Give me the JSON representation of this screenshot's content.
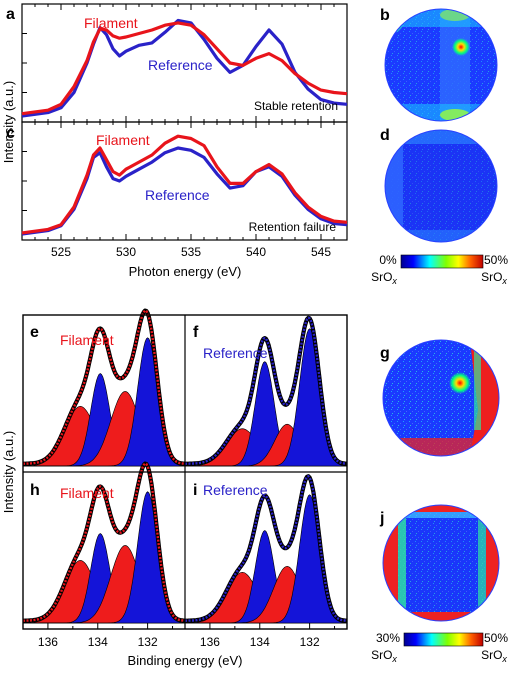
{
  "colors": {
    "filament": "#e8141b",
    "reference": "#2a22c8",
    "fill_red": "#ee1c1c",
    "fill_blue": "#1414d8",
    "map_bg": "#1c38ff"
  },
  "panel_labels": {
    "a": "a",
    "b": "b",
    "c": "c",
    "d": "d",
    "e": "e",
    "f": "f",
    "g": "g",
    "h": "h",
    "i": "i",
    "j": "j"
  },
  "top": {
    "ylabel": "Intensity (a.u.)",
    "xlabel": "Photon energy (eV)",
    "xticks": [
      "525",
      "530",
      "535",
      "540",
      "545"
    ],
    "panel_a": {
      "filament_label": "Filament",
      "reference_label": "Reference",
      "note": "Stable retention"
    },
    "panel_c": {
      "filament_label": "Filament",
      "reference_label": "Reference",
      "note": "Retention failure"
    }
  },
  "bottom": {
    "ylabel": "Intensity (a.u.)",
    "xlabel": "Binding energy (eV)",
    "xticks": [
      "136",
      "134",
      "132",
      "136",
      "134",
      "132"
    ],
    "panel_e": {
      "label": "Filament"
    },
    "panel_f": {
      "label": "Reference"
    },
    "panel_h": {
      "label": "Filament"
    },
    "panel_i": {
      "label": "Reference"
    }
  },
  "colorbar_top": {
    "min_label": "0%",
    "max_label": "50%",
    "species": "SrO",
    "subscript": "x"
  },
  "colorbar_bottom": {
    "min_label": "30%",
    "max_label": "50%",
    "species": "SrO",
    "subscript": "x"
  },
  "chart_data": [
    {
      "type": "line",
      "panel": "a",
      "xlabel": "Photon energy (eV)",
      "ylabel": "Intensity (a.u.)",
      "xlim": [
        522,
        547
      ],
      "ylim": [
        0,
        1
      ],
      "series": [
        {
          "name": "Filament",
          "x": [
            522,
            524,
            525,
            526,
            527,
            527.5,
            528,
            528.5,
            529,
            529.5,
            530,
            531,
            532,
            533,
            534,
            535,
            536,
            537,
            538,
            539,
            540,
            541,
            542,
            543,
            544,
            545,
            546,
            547
          ],
          "y": [
            0.07,
            0.1,
            0.15,
            0.3,
            0.52,
            0.68,
            0.79,
            0.78,
            0.73,
            0.71,
            0.72,
            0.75,
            0.78,
            0.82,
            0.84,
            0.82,
            0.74,
            0.62,
            0.5,
            0.48,
            0.54,
            0.58,
            0.52,
            0.41,
            0.33,
            0.27,
            0.25,
            0.24
          ]
        },
        {
          "name": "Reference",
          "x": [
            522,
            524,
            525,
            526,
            527,
            527.5,
            528,
            528.5,
            529,
            529.5,
            530,
            531,
            532,
            533,
            534,
            535,
            536,
            537,
            538,
            539,
            540,
            541,
            542,
            543,
            544,
            545,
            546,
            547
          ],
          "y": [
            0.05,
            0.08,
            0.12,
            0.25,
            0.5,
            0.66,
            0.8,
            0.74,
            0.62,
            0.56,
            0.6,
            0.65,
            0.67,
            0.76,
            0.86,
            0.84,
            0.7,
            0.54,
            0.42,
            0.48,
            0.64,
            0.78,
            0.66,
            0.42,
            0.28,
            0.19,
            0.16,
            0.15
          ]
        }
      ]
    },
    {
      "type": "line",
      "panel": "c",
      "xlabel": "Photon energy (eV)",
      "ylabel": "Intensity (a.u.)",
      "xlim": [
        522,
        547
      ],
      "ylim": [
        0,
        1
      ],
      "series": [
        {
          "name": "Filament",
          "x": [
            522,
            524,
            525,
            526,
            527,
            527.5,
            528,
            528.5,
            529,
            529.5,
            530,
            531,
            532,
            533,
            534,
            535,
            536,
            537,
            538,
            539,
            540,
            541,
            542,
            543,
            544,
            545,
            546,
            547
          ],
          "y": [
            0.06,
            0.09,
            0.13,
            0.28,
            0.55,
            0.72,
            0.78,
            0.68,
            0.58,
            0.55,
            0.6,
            0.66,
            0.72,
            0.82,
            0.88,
            0.86,
            0.8,
            0.62,
            0.48,
            0.48,
            0.58,
            0.64,
            0.56,
            0.4,
            0.28,
            0.2,
            0.16,
            0.15
          ]
        },
        {
          "name": "Reference",
          "x": [
            522,
            524,
            525,
            526,
            527,
            527.5,
            528,
            528.5,
            529,
            529.5,
            530,
            531,
            532,
            533,
            534,
            535,
            536,
            537,
            538,
            539,
            540,
            541,
            542,
            543,
            544,
            545,
            546,
            547
          ],
          "y": [
            0.05,
            0.08,
            0.12,
            0.26,
            0.52,
            0.7,
            0.74,
            0.62,
            0.52,
            0.5,
            0.54,
            0.6,
            0.66,
            0.74,
            0.78,
            0.76,
            0.7,
            0.56,
            0.44,
            0.46,
            0.58,
            0.62,
            0.54,
            0.38,
            0.26,
            0.18,
            0.14,
            0.13
          ]
        }
      ]
    },
    {
      "type": "area",
      "panel": "e",
      "label": "Filament",
      "xlim": [
        137,
        130.5
      ],
      "components": [
        {
          "center": 134.7,
          "height": 0.4,
          "sigma": 0.62,
          "color": "red"
        },
        {
          "center": 133.9,
          "height": 0.62,
          "sigma": 0.38,
          "color": "blue"
        },
        {
          "center": 132.9,
          "height": 0.5,
          "sigma": 0.58,
          "color": "red"
        },
        {
          "center": 132.0,
          "height": 0.86,
          "sigma": 0.4,
          "color": "blue"
        }
      ]
    },
    {
      "type": "area",
      "panel": "f",
      "label": "Reference",
      "xlim": [
        137,
        130.5
      ],
      "components": [
        {
          "center": 134.7,
          "height": 0.25,
          "sigma": 0.62,
          "color": "red"
        },
        {
          "center": 133.8,
          "height": 0.7,
          "sigma": 0.38,
          "color": "blue"
        },
        {
          "center": 132.9,
          "height": 0.28,
          "sigma": 0.5,
          "color": "red"
        },
        {
          "center": 132.0,
          "height": 0.92,
          "sigma": 0.4,
          "color": "blue"
        }
      ]
    },
    {
      "type": "area",
      "panel": "h",
      "label": "Filament",
      "xlim": [
        137,
        130.5
      ],
      "components": [
        {
          "center": 134.7,
          "height": 0.42,
          "sigma": 0.62,
          "color": "red"
        },
        {
          "center": 133.9,
          "height": 0.6,
          "sigma": 0.38,
          "color": "blue"
        },
        {
          "center": 132.9,
          "height": 0.52,
          "sigma": 0.58,
          "color": "red"
        },
        {
          "center": 132.0,
          "height": 0.88,
          "sigma": 0.4,
          "color": "blue"
        }
      ]
    },
    {
      "type": "area",
      "panel": "i",
      "label": "Reference",
      "xlim": [
        137,
        130.5
      ],
      "components": [
        {
          "center": 134.7,
          "height": 0.34,
          "sigma": 0.62,
          "color": "red"
        },
        {
          "center": 133.8,
          "height": 0.62,
          "sigma": 0.38,
          "color": "blue"
        },
        {
          "center": 132.9,
          "height": 0.38,
          "sigma": 0.55,
          "color": "red"
        },
        {
          "center": 132.0,
          "height": 0.86,
          "sigma": 0.4,
          "color": "blue"
        }
      ]
    }
  ]
}
